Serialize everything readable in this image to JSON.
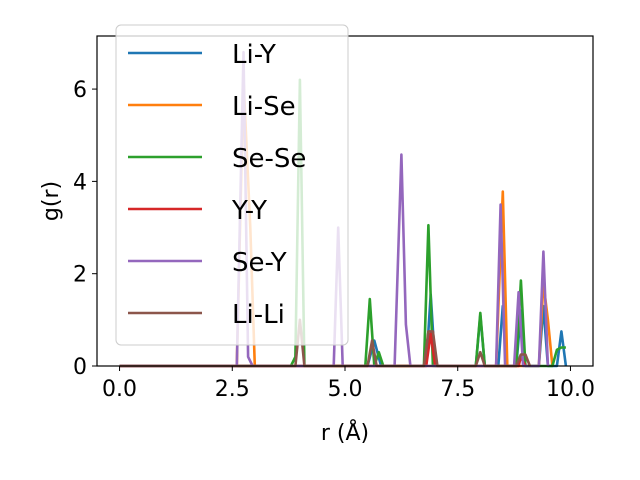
{
  "chart_data": {
    "type": "line",
    "xlabel": "r (Å)",
    "ylabel": "g(r)",
    "xlim": [
      -0.5,
      10.5
    ],
    "ylim": [
      0,
      7.15
    ],
    "xticks": [
      0.0,
      2.5,
      5.0,
      7.5,
      10.0
    ],
    "xtick_labels": [
      "0.0",
      "2.5",
      "5.0",
      "7.5",
      "10.0"
    ],
    "yticks": [
      0,
      2,
      4,
      6
    ],
    "ytick_labels": [
      "0",
      "2",
      "4",
      "6"
    ],
    "grid": false,
    "legend_position": "upper-left",
    "series": [
      {
        "name": "Li-Y",
        "color": "#1f77b4",
        "x": [
          0,
          5.5,
          5.65,
          5.8,
          6.8,
          6.9,
          7.0,
          7.9,
          8.0,
          8.1,
          8.4,
          8.5,
          8.6,
          8.8,
          8.9,
          9.0,
          9.3,
          9.4,
          9.5,
          9.7,
          9.8,
          9.9
        ],
        "y": [
          0,
          0,
          0.55,
          0,
          0,
          1.55,
          0,
          0,
          1.1,
          0,
          0,
          1.3,
          0,
          0,
          1.2,
          0,
          0,
          1.3,
          0,
          0,
          0.75,
          0
        ]
      },
      {
        "name": "Li-Se",
        "color": "#ff7f0e",
        "x": [
          0,
          2.6,
          2.75,
          2.9,
          3.0,
          8.35,
          8.5,
          8.6,
          9.3,
          9.4,
          9.5,
          9.6
        ],
        "y": [
          0,
          0,
          6.2,
          3.0,
          0,
          0,
          3.78,
          0,
          0,
          1.8,
          1.0,
          0
        ]
      },
      {
        "name": "Se-Se",
        "color": "#2ca02c",
        "x": [
          0,
          3.8,
          3.9,
          4.0,
          4.1,
          5.45,
          5.55,
          5.65,
          5.75,
          5.85,
          6.75,
          6.85,
          6.95,
          7.9,
          8.0,
          8.1,
          8.8,
          8.9,
          9.0,
          9.6,
          9.7,
          9.8,
          9.9
        ],
        "y": [
          0,
          0,
          0.2,
          6.2,
          0,
          0,
          1.45,
          0,
          0.3,
          0,
          0,
          3.05,
          0,
          0,
          1.15,
          0,
          0,
          1.85,
          0,
          0,
          0.35,
          0.4,
          0.4
        ]
      },
      {
        "name": "Y-Y",
        "color": "#d62728",
        "x": [
          0,
          6.8,
          6.9,
          7.0,
          8.85,
          8.9,
          9.0
        ],
        "y": [
          0,
          0,
          0.7,
          0,
          0,
          0.2,
          0
        ]
      },
      {
        "name": "Se-Y",
        "color": "#9467bd",
        "x": [
          0,
          2.6,
          2.75,
          2.85,
          2.95,
          4.75,
          4.85,
          4.95,
          6.1,
          6.25,
          6.35,
          6.45,
          8.35,
          8.45,
          8.55,
          8.75,
          8.85,
          8.95,
          9.3,
          9.4,
          9.5
        ],
        "y": [
          0,
          0,
          6.8,
          0.2,
          0,
          0,
          3.0,
          0,
          0,
          4.58,
          0.9,
          0,
          0,
          3.5,
          0,
          0,
          1.6,
          0,
          0,
          2.48,
          0
        ]
      },
      {
        "name": "Li-Li",
        "color": "#8c564b",
        "x": [
          0,
          3.9,
          4.0,
          4.1,
          5.5,
          5.6,
          5.7,
          6.75,
          6.85,
          6.95,
          7.05,
          7.9,
          8.0,
          8.1,
          8.8,
          8.9,
          9.0,
          9.1
        ],
        "y": [
          0,
          0,
          1.0,
          0,
          0,
          0.55,
          0,
          0,
          0.75,
          0.75,
          0,
          0,
          0.3,
          0,
          0,
          0.25,
          0.25,
          0
        ]
      }
    ]
  }
}
